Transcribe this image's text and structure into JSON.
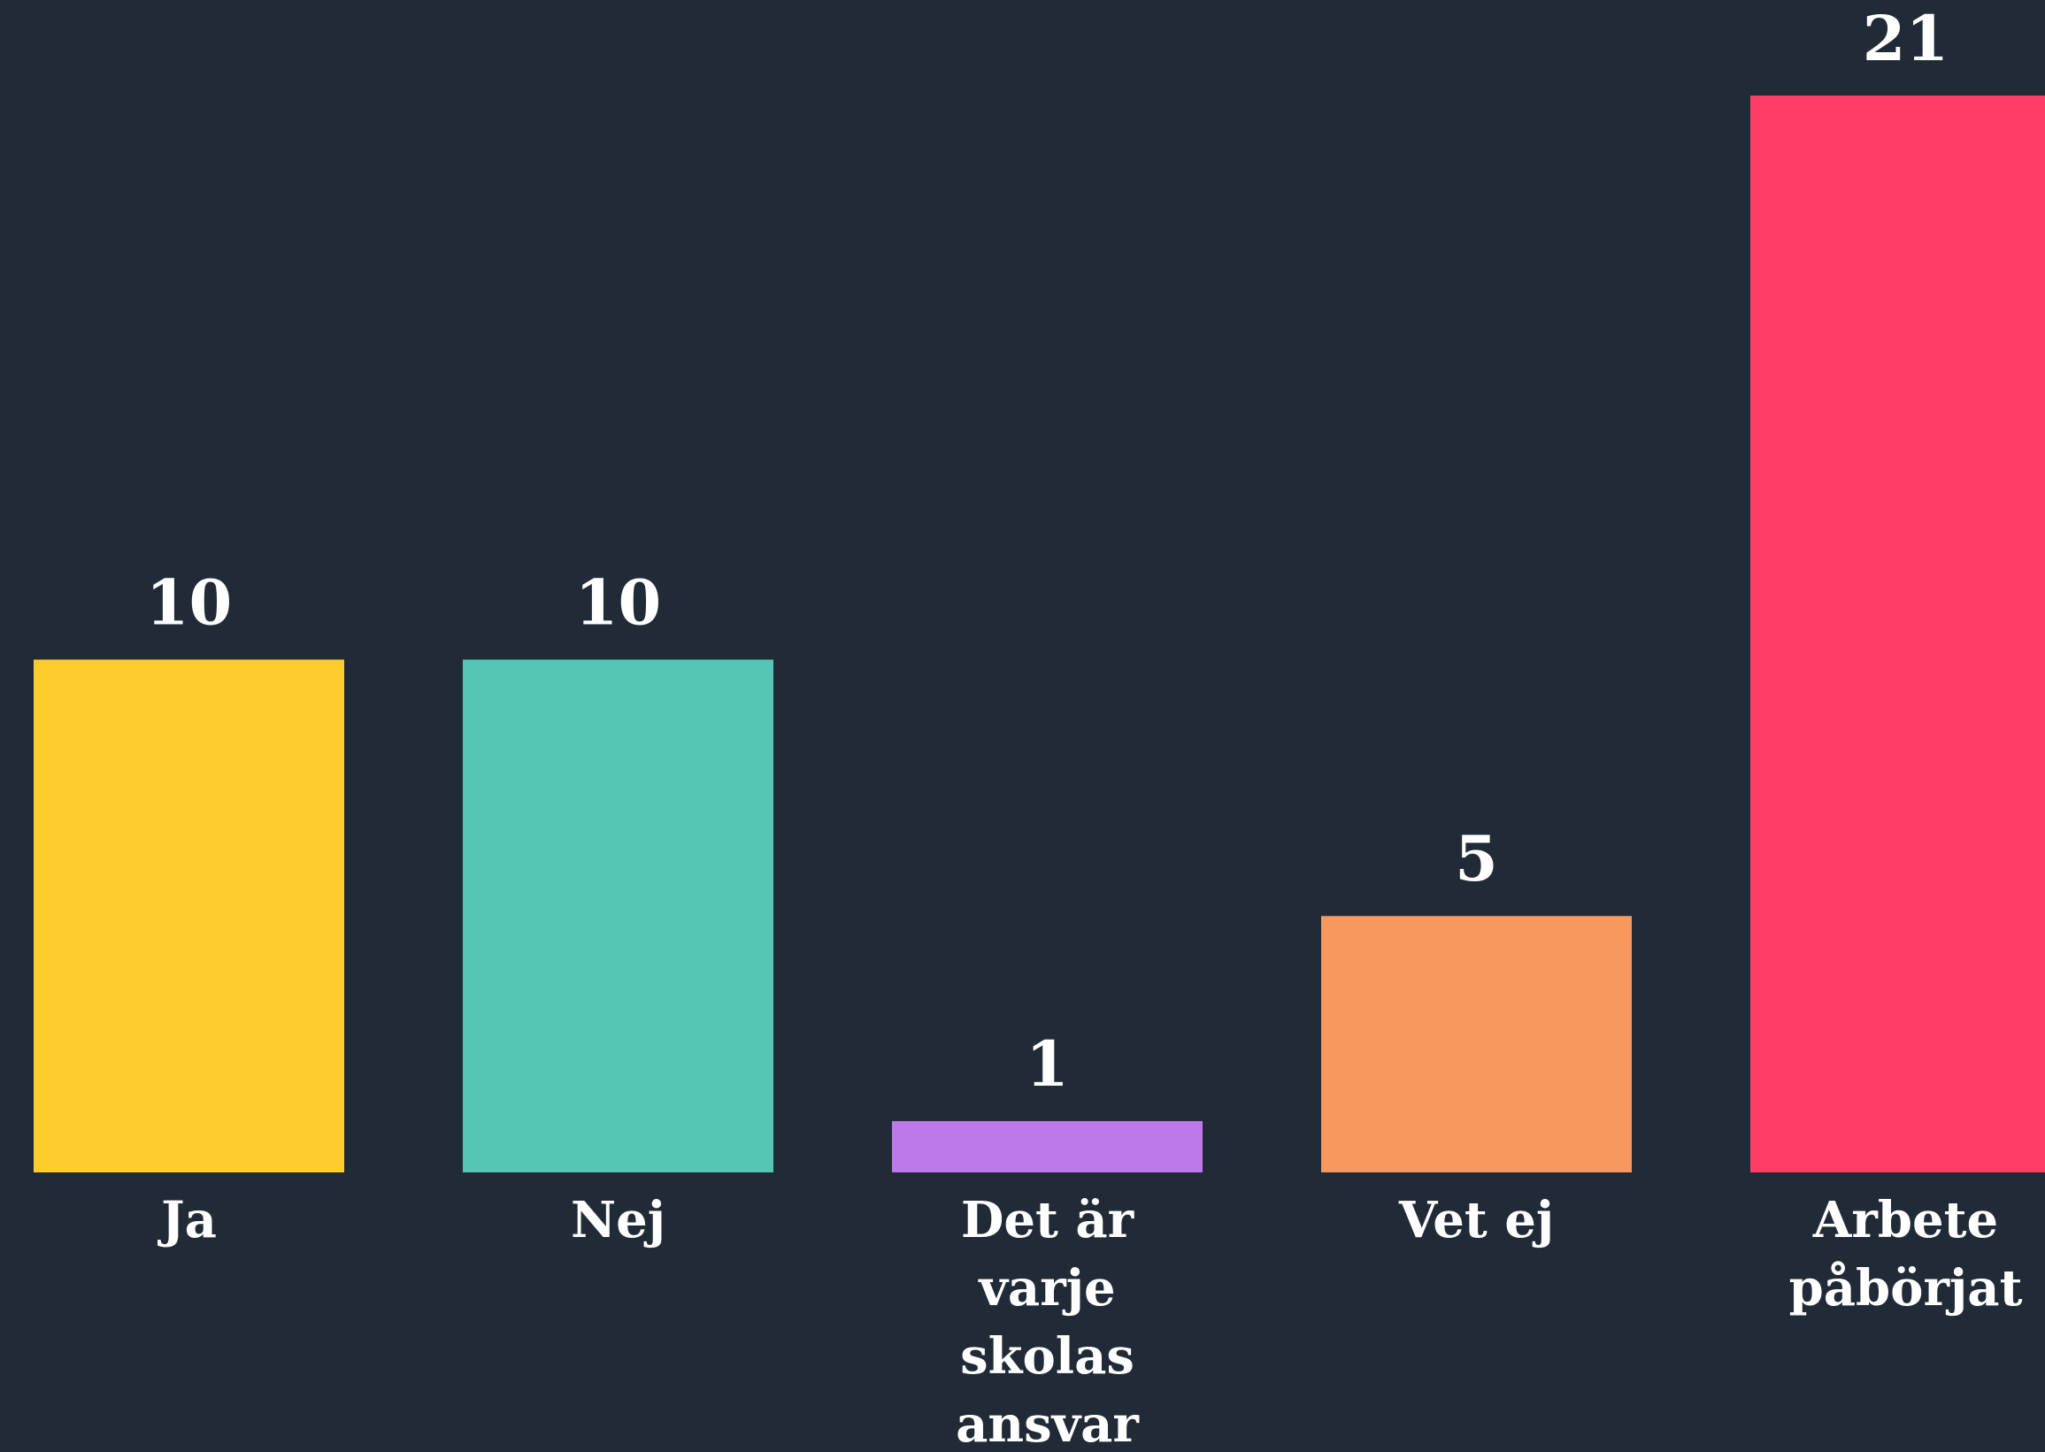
{
  "chart_data": {
    "type": "bar",
    "categories": [
      "Ja",
      "Nej",
      "Det är varje skolas ansvar",
      "Vet ej",
      "Arbete påbörjat"
    ],
    "values": [
      10,
      10,
      1,
      5,
      21
    ],
    "colors": [
      "#ffcd2e",
      "#56c6b4",
      "#bd78ea",
      "#f7985f",
      "#ff3e65"
    ]
  }
}
